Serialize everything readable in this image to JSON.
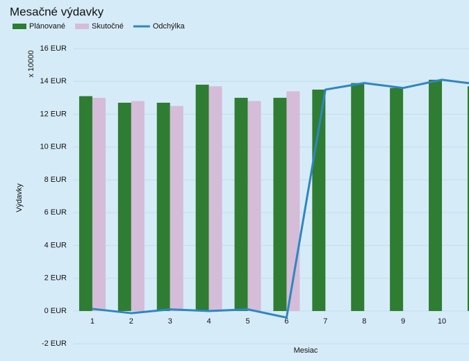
{
  "chart_data": {
    "type": "bar_line",
    "title": "Mesačné výdavky",
    "y_label": "Výdavky",
    "y_multiplier_label": "x 10000",
    "x_label": "Mesiac",
    "categories": [
      "1",
      "2",
      "3",
      "4",
      "5",
      "6",
      "7",
      "8",
      "9",
      "10",
      null
    ],
    "series": [
      {
        "name": "Plánované",
        "type": "bar",
        "color": "#2e7d32",
        "values": [
          13.1,
          12.7,
          12.7,
          13.8,
          13.0,
          13.0,
          13.5,
          13.9,
          13.6,
          14.1,
          13.7
        ]
      },
      {
        "name": "Skutočné",
        "type": "bar",
        "color": "#d5bcd8",
        "values": [
          13.0,
          12.8,
          12.5,
          13.7,
          12.8,
          13.4,
          null,
          null,
          null,
          null,
          null
        ]
      },
      {
        "name": "Odchýlka",
        "type": "line",
        "color": "#2e86c1",
        "values": [
          0.13,
          -0.13,
          0.1,
          0.0,
          0.1,
          -0.4,
          13.5,
          13.9,
          13.6,
          14.1,
          13.8
        ]
      }
    ],
    "ylim": [
      -2,
      16
    ],
    "yticks": [
      {
        "value": -2,
        "label": "-2 EUR"
      },
      {
        "value": 0,
        "label": "0 EUR"
      },
      {
        "value": 2,
        "label": "2 EUR"
      },
      {
        "value": 4,
        "label": "4 EUR"
      },
      {
        "value": 6,
        "label": "6 EUR"
      },
      {
        "value": 8,
        "label": "8 EUR"
      },
      {
        "value": 10,
        "label": "10 EUR"
      },
      {
        "value": 12,
        "label": "12 EUR"
      },
      {
        "value": 14,
        "label": "14 EUR"
      },
      {
        "value": 16,
        "label": "16 EUR"
      }
    ],
    "negative_tick_color": "#e01010",
    "grid": true,
    "legend": "top-left"
  }
}
